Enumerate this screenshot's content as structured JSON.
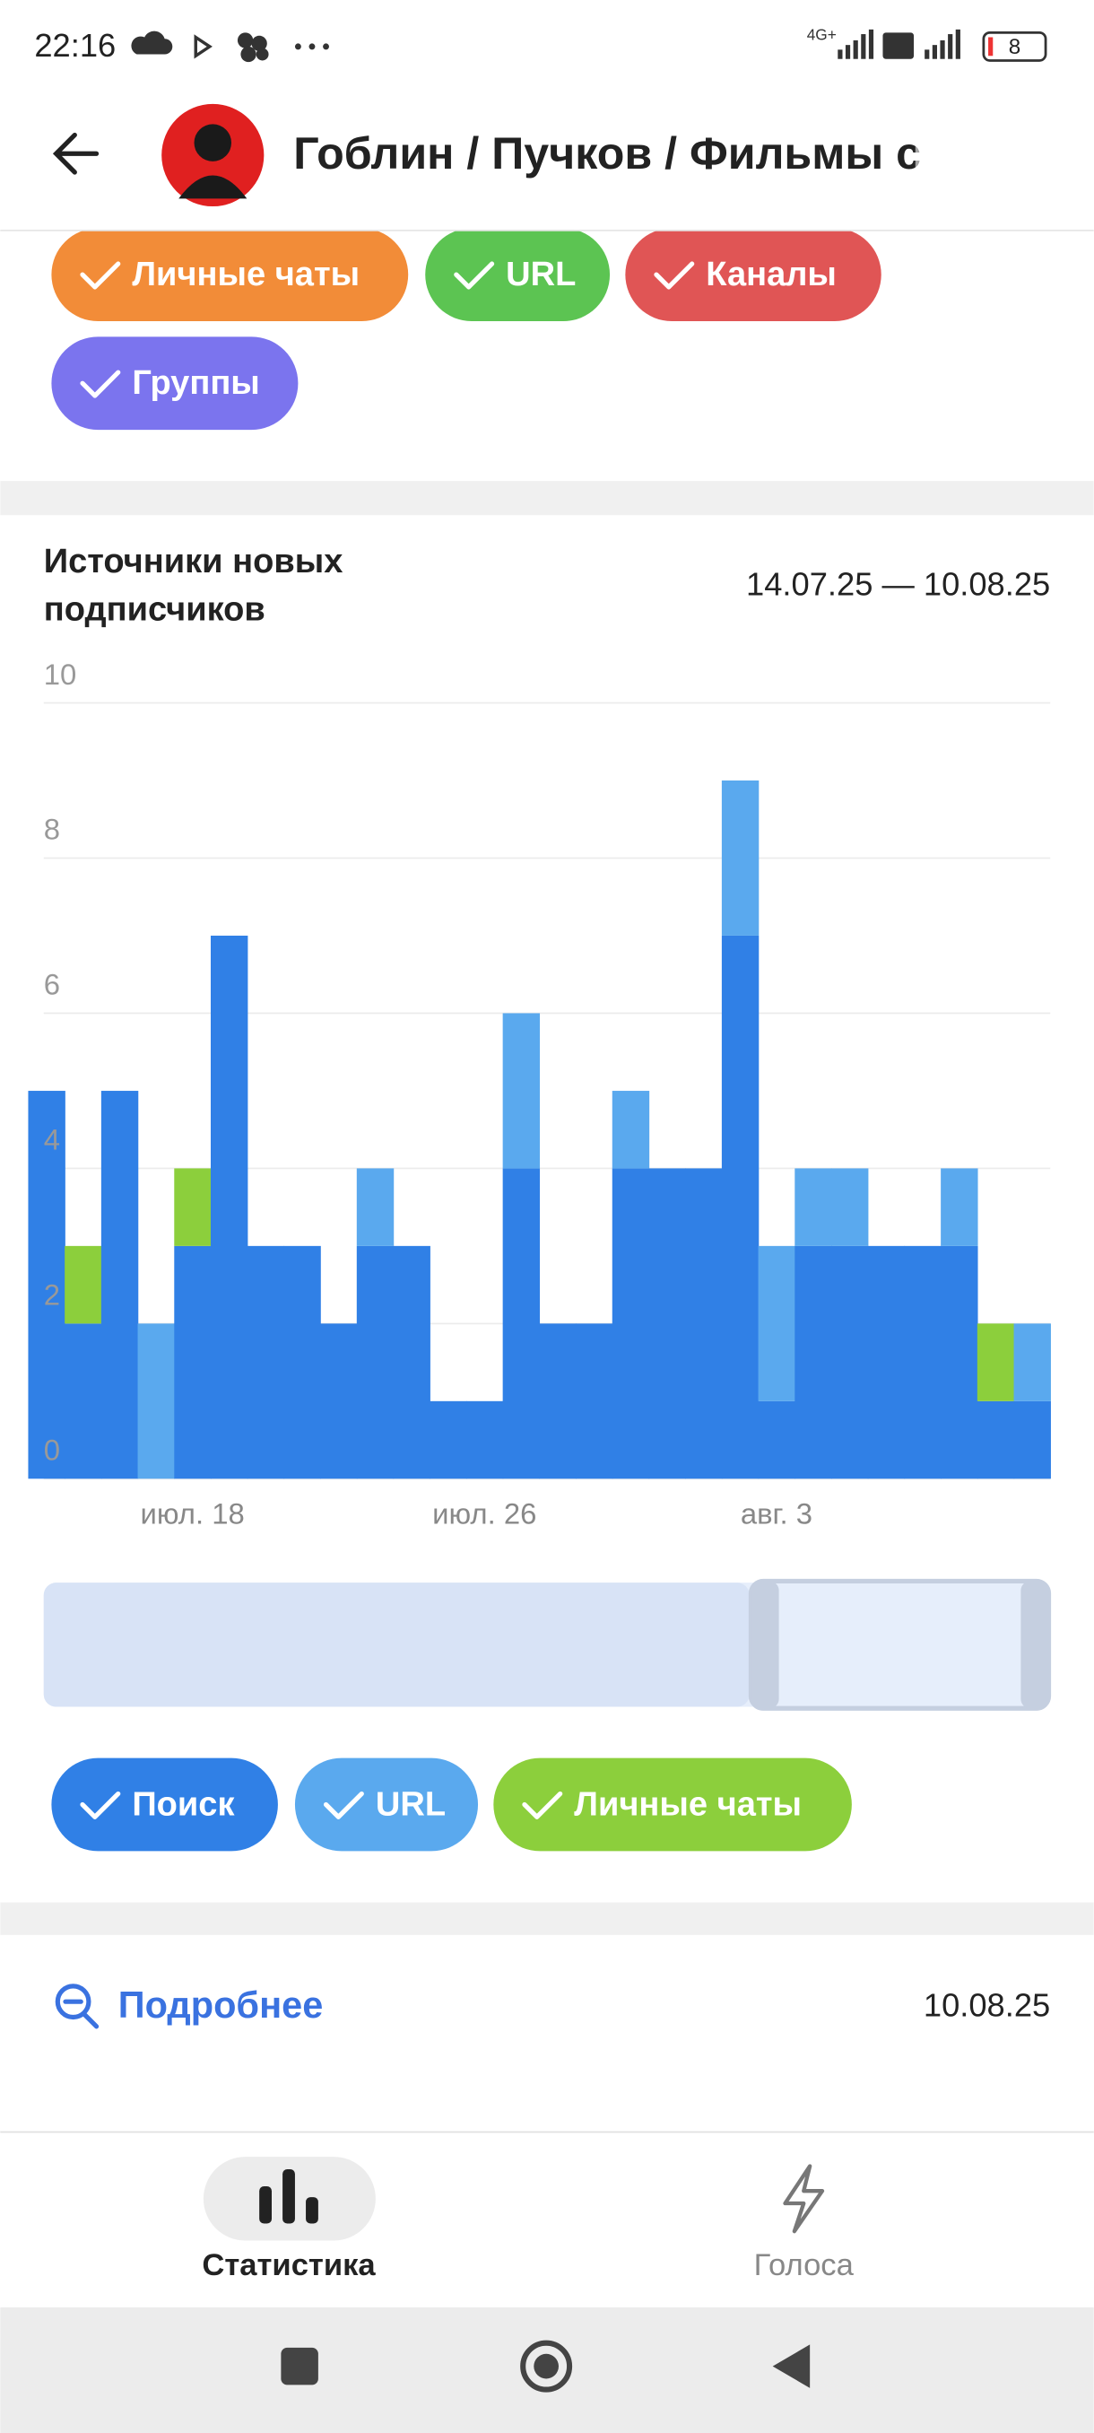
{
  "status_bar": {
    "time": "22:16",
    "network": "4G+",
    "battery": "8"
  },
  "header": {
    "title": "Гоблин / Пучков / Фильмы с"
  },
  "filters": [
    "Личные чаты",
    "URL",
    "Каналы",
    "Группы"
  ],
  "section": {
    "title_lines": [
      "Источники новых",
      "подписчиков"
    ],
    "date_range": "14.07.25 — 10.08.25"
  },
  "chart_data": {
    "type": "bar",
    "stacked": true,
    "categories": [
      null,
      null,
      null,
      null,
      "июл. 18",
      null,
      null,
      null,
      null,
      null,
      null,
      null,
      "июл. 26",
      null,
      null,
      null,
      null,
      null,
      null,
      null,
      "авг. 3",
      null,
      null,
      null,
      null,
      null,
      null,
      null
    ],
    "series": [
      {
        "name": "Поиск",
        "color": "#3080e6",
        "values": [
          5,
          2,
          5,
          0,
          3,
          7,
          3,
          3,
          2,
          3,
          3,
          1,
          1,
          4,
          2,
          2,
          4,
          4,
          4,
          7,
          1,
          3,
          3,
          3,
          3,
          3,
          1,
          1
        ]
      },
      {
        "name": "URL",
        "color": "#5aa9ee",
        "values": [
          0,
          0,
          0,
          2,
          0,
          0,
          0,
          0,
          0,
          1,
          0,
          0,
          0,
          2,
          0,
          0,
          1,
          0,
          0,
          2,
          2,
          1,
          1,
          0,
          0,
          1,
          0,
          1
        ]
      },
      {
        "name": "Личные чаты",
        "color": "#8ccf3c",
        "values": [
          0,
          1,
          0,
          0,
          1,
          0,
          0,
          0,
          0,
          0,
          0,
          0,
          0,
          0,
          0,
          0,
          0,
          0,
          0,
          0,
          0,
          0,
          0,
          0,
          0,
          0,
          1,
          0
        ]
      }
    ],
    "ylim": [
      0,
      10
    ],
    "yticks": [
      0,
      2,
      4,
      6,
      8,
      10
    ],
    "grid": true
  },
  "details": {
    "label": "Подробнее",
    "date": "10.08.25"
  },
  "nav": [
    "Статистика",
    "Голоса"
  ]
}
